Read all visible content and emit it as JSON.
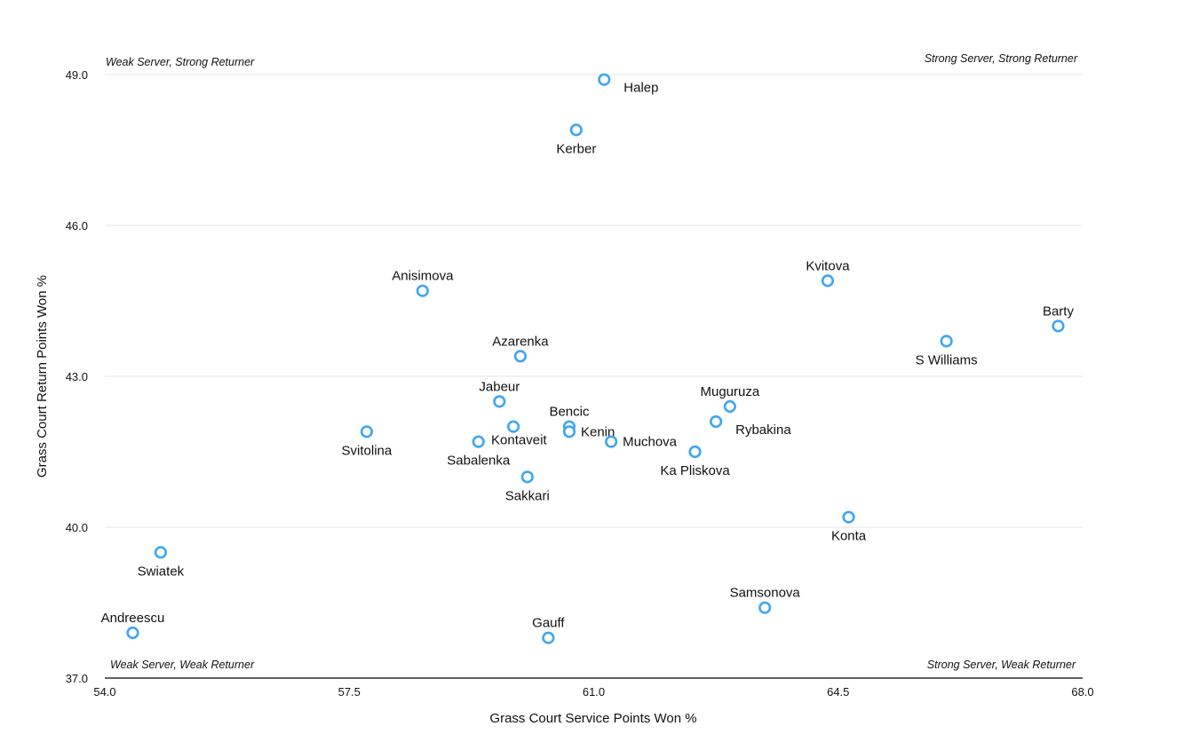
{
  "chart_data": {
    "type": "scatter",
    "xlabel": "Grass Court Service Points Won %",
    "ylabel": "Grass Court Return Points Won %",
    "xlim": [
      54.0,
      68.0
    ],
    "ylim": [
      37.0,
      49.0
    ],
    "x_ticks": [
      "54.0",
      "57.5",
      "61.0",
      "64.5",
      "68.0"
    ],
    "y_ticks": [
      "37.0",
      "40.0",
      "43.0",
      "46.0",
      "49.0"
    ],
    "grid": "horizontal",
    "point_color": "#3ea6f2",
    "quadrant_labels": {
      "top_left": "Weak Server, Strong Returner",
      "top_right": "Strong Server, Strong Returner",
      "bottom_left": "Weak Server, Weak Returner",
      "bottom_right": "Strong Server, Weak Returner"
    },
    "points": [
      {
        "label": "Halep",
        "x": 61.15,
        "y": 48.9,
        "pos": "below-right"
      },
      {
        "label": "Kerber",
        "x": 60.75,
        "y": 47.9,
        "pos": "below"
      },
      {
        "label": "Anisimova",
        "x": 58.55,
        "y": 44.7,
        "pos": "above"
      },
      {
        "label": "Kvitova",
        "x": 64.35,
        "y": 44.9,
        "pos": "above"
      },
      {
        "label": "Barty",
        "x": 67.65,
        "y": 44.0,
        "pos": "above"
      },
      {
        "label": "S Williams",
        "x": 66.05,
        "y": 43.7,
        "pos": "below"
      },
      {
        "label": "Azarenka",
        "x": 59.95,
        "y": 43.4,
        "pos": "above"
      },
      {
        "label": "Jabeur",
        "x": 59.65,
        "y": 42.5,
        "pos": "above"
      },
      {
        "label": "Muguruza",
        "x": 62.95,
        "y": 42.4,
        "pos": "above"
      },
      {
        "label": "Rybakina",
        "x": 62.75,
        "y": 42.1,
        "pos": "below-right"
      },
      {
        "label": "Bencic",
        "x": 60.65,
        "y": 42.0,
        "pos": "above"
      },
      {
        "label": "Kenin",
        "x": 60.65,
        "y": 41.9,
        "pos": "right"
      },
      {
        "label": "Kontaveit",
        "x": 59.85,
        "y": 42.0,
        "pos": "below-left"
      },
      {
        "label": "Svitolina",
        "x": 57.75,
        "y": 41.9,
        "pos": "below"
      },
      {
        "label": "Sabalenka",
        "x": 59.35,
        "y": 41.7,
        "pos": "below"
      },
      {
        "label": "Muchova",
        "x": 61.25,
        "y": 41.7,
        "pos": "right"
      },
      {
        "label": "Ka Pliskova",
        "x": 62.45,
        "y": 41.5,
        "pos": "below"
      },
      {
        "label": "Sakkari",
        "x": 60.05,
        "y": 41.0,
        "pos": "below"
      },
      {
        "label": "Konta",
        "x": 64.65,
        "y": 40.2,
        "pos": "below"
      },
      {
        "label": "Swiatek",
        "x": 54.8,
        "y": 39.5,
        "pos": "below"
      },
      {
        "label": "Samsonova",
        "x": 63.45,
        "y": 38.4,
        "pos": "above"
      },
      {
        "label": "Andreescu",
        "x": 54.4,
        "y": 37.9,
        "pos": "above"
      },
      {
        "label": "Gauff",
        "x": 60.35,
        "y": 37.8,
        "pos": "above"
      }
    ]
  }
}
